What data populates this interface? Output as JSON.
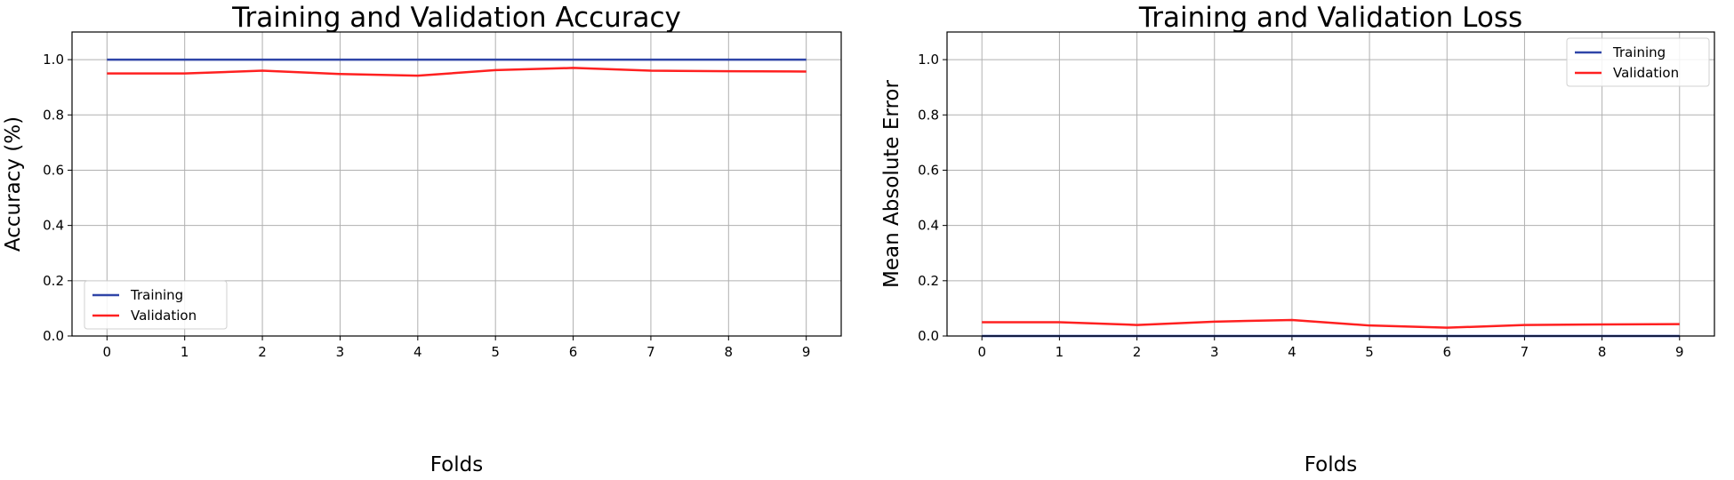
{
  "chart_data": [
    {
      "type": "line",
      "title": "Training and Validation Accuracy",
      "xlabel": "Folds",
      "ylabel": "Accuracy (%)",
      "x": [
        0,
        1,
        2,
        3,
        4,
        5,
        6,
        7,
        8,
        9
      ],
      "xlim": [
        -0.45,
        9.45
      ],
      "ylim": [
        0,
        1.1
      ],
      "yticks": [
        0.0,
        0.2,
        0.4,
        0.6,
        0.8,
        1.0
      ],
      "ytick_labels": [
        "0.0",
        "0.2",
        "0.4",
        "0.6",
        "0.8",
        "1.0"
      ],
      "xtick_labels": [
        "0",
        "1",
        "2",
        "3",
        "4",
        "5",
        "6",
        "7",
        "8",
        "9"
      ],
      "grid": true,
      "legend": "lower-left",
      "series": [
        {
          "name": "Training",
          "color": "#2f45a8",
          "values": [
            1,
            1,
            1,
            1,
            1,
            1,
            1,
            1,
            1,
            1
          ]
        },
        {
          "name": "Validation",
          "color": "#ff2020",
          "values": [
            0.95,
            0.95,
            0.96,
            0.948,
            0.942,
            0.962,
            0.97,
            0.96,
            0.958,
            0.957
          ]
        }
      ]
    },
    {
      "type": "line",
      "title": "Training and Validation Loss",
      "xlabel": "Folds",
      "ylabel": "Mean Absolute Error",
      "x": [
        0,
        1,
        2,
        3,
        4,
        5,
        6,
        7,
        8,
        9
      ],
      "xlim": [
        -0.45,
        9.45
      ],
      "ylim": [
        0,
        1.1
      ],
      "yticks": [
        0.0,
        0.2,
        0.4,
        0.6,
        0.8,
        1.0
      ],
      "ytick_labels": [
        "0.0",
        "0.2",
        "0.4",
        "0.6",
        "0.8",
        "1.0"
      ],
      "xtick_labels": [
        "0",
        "1",
        "2",
        "3",
        "4",
        "5",
        "6",
        "7",
        "8",
        "9"
      ],
      "grid": true,
      "legend": "upper-right",
      "series": [
        {
          "name": "Training",
          "color": "#2f45a8",
          "values": [
            0,
            0,
            0,
            0,
            0,
            0,
            0,
            0,
            0,
            0
          ]
        },
        {
          "name": "Validation",
          "color": "#ff2020",
          "values": [
            0.05,
            0.05,
            0.04,
            0.052,
            0.058,
            0.038,
            0.03,
            0.04,
            0.042,
            0.043
          ]
        }
      ]
    }
  ]
}
